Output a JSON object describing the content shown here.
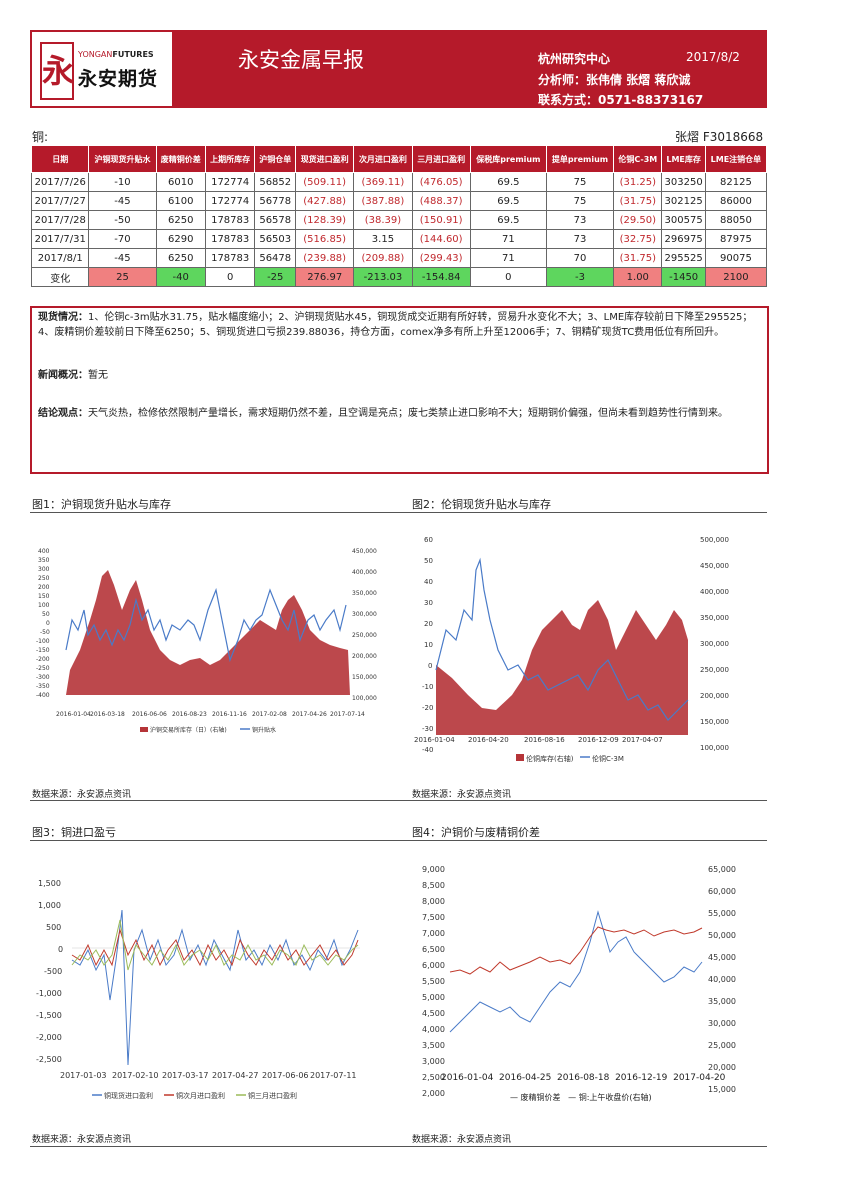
{
  "header": {
    "title": "永安金属早报",
    "center": "杭州研究中心",
    "date": "2017/8/2",
    "analyst": "分析师：张伟倩 张熠 蒋欣诚",
    "contact": "联系方式：0571-88373167",
    "logo_en_a": "YONGAN",
    "logo_en_b": "FUTURES",
    "logo_cn": "永安期货",
    "logo_mark": "永"
  },
  "section": {
    "name": "铜:",
    "author": "张熠 F3018668"
  },
  "table": {
    "headers": [
      "日期",
      "沪铜现货升贴水",
      "废精铜价差",
      "上期所库存",
      "沪铜仓单",
      "现货进口盈利",
      "次月进口盈利",
      "三月进口盈利",
      "保税库premium",
      "提单premium",
      "伦铜C-3M",
      "LME库存",
      "LME注销仓单"
    ],
    "rows": [
      [
        "2017/7/26",
        "-10",
        "6010",
        "172774",
        "56852",
        "(509.11)",
        "(369.11)",
        "(476.05)",
        "69.5",
        "75",
        "(31.25)",
        "303250",
        "82125"
      ],
      [
        "2017/7/27",
        "-45",
        "6100",
        "172774",
        "56778",
        "(427.88)",
        "(387.88)",
        "(488.37)",
        "69.5",
        "75",
        "(31.75)",
        "302125",
        "86000"
      ],
      [
        "2017/7/28",
        "-50",
        "6250",
        "178783",
        "56578",
        "(128.39)",
        "(38.39)",
        "(150.91)",
        "69.5",
        "73",
        "(29.50)",
        "300575",
        "88050"
      ],
      [
        "2017/7/31",
        "-70",
        "6290",
        "178783",
        "56503",
        "(516.85)",
        "3.15",
        "(144.60)",
        "71",
        "73",
        "(32.75)",
        "296975",
        "87975"
      ],
      [
        "2017/8/1",
        "-45",
        "6250",
        "178783",
        "56478",
        "(239.88)",
        "(209.88)",
        "(299.43)",
        "71",
        "70",
        "(31.75)",
        "295525",
        "90075"
      ]
    ],
    "change": [
      "变化",
      "25",
      "-40",
      "0",
      "-25",
      "276.97",
      "-213.03",
      "-154.84",
      "0",
      "-3",
      "1.00",
      "-1450",
      "2100"
    ]
  },
  "commentary": {
    "spot_label": "现货情况：",
    "spot_text": "1、伦铜c-3m贴水31.75，贴水幅度缩小；2、沪铜现货贴水45，铜现货成交近期有所好转，贸易升水变化不大；3、LME库存较前日下降至295525；4、废精铜价差较前日下降至6250；5、铜现货进口亏损239.88036，持仓方面，comex净多有所上升至12006手；7、铜精矿现货TC费用低位有所回升。",
    "news_label": "新闻概况：",
    "news_text": "暂无",
    "view_label": "结论观点：",
    "view_text": "天气炎热，检修依然限制产量增长，需求短期仍然不差，且空调是亮点；废七类禁止进口影响不大；短期铜价偏强，但尚未看到趋势性行情到来。"
  },
  "figures": {
    "fig1_title": "图1：沪铜现货升贴水与库存",
    "fig2_title": "图2：伦铜现货升贴水与库存",
    "fig3_title": "图3：铜进口盈亏",
    "fig4_title": "图4：沪铜价与废精铜价差",
    "source": "数据来源：永安源点资讯"
  },
  "chart_data": [
    {
      "type": "area",
      "x": [
        "2016-01-04",
        "2016-03-18",
        "2016-06-06",
        "2016-08-23",
        "2016-11-16",
        "2017-02-08",
        "2017-04-26",
        "2017-07-14"
      ],
      "series": [
        {
          "name": "沪铜交易所库存（日）(右轴)",
          "values": [
            150000,
            365000,
            345000,
            120000,
            175000,
            290000,
            260000,
            192000
          ]
        },
        {
          "name": "铜升贴水",
          "values": [
            20,
            0,
            60,
            -60,
            -20,
            40,
            -30,
            -45
          ]
        }
      ],
      "ylim_left": [
        -400,
        400
      ],
      "ylim_right": [
        100000,
        450000
      ]
    },
    {
      "type": "area",
      "x": [
        "2016-01-04",
        "2016-04-20",
        "2016-08-16",
        "2016-12-09",
        "2017-04-07"
      ],
      "series": [
        {
          "name": "伦铜库存(右轴)",
          "values": [
            230000,
            145000,
            315000,
            365000,
            350000
          ]
        },
        {
          "name": "伦铜C-3M",
          "values": [
            0,
            40,
            -20,
            -10,
            -30
          ]
        }
      ],
      "ylim_left": [
        -40,
        60
      ],
      "ylim_right": [
        100000,
        500000
      ]
    },
    {
      "type": "line",
      "x": [
        "2017-01-03",
        "2017-02-10",
        "2017-03-17",
        "2017-04-27",
        "2017-06-06",
        "2017-07-11"
      ],
      "series": [
        {
          "name": "铜现货进口盈利",
          "values": [
            -300,
            -1000,
            -200,
            -400,
            -300,
            -240
          ]
        },
        {
          "name": "铜次月进口盈利",
          "values": [
            -400,
            -500,
            -300,
            -200,
            -400,
            -210
          ]
        },
        {
          "name": "铜三月进口盈利",
          "values": [
            -500,
            -300,
            -400,
            -300,
            -500,
            -300
          ]
        }
      ],
      "ylim": [
        -2500,
        1500
      ]
    },
    {
      "type": "line",
      "x": [
        "2016-01-04",
        "2016-04-25",
        "2016-08-18",
        "2016-12-19",
        "2017-04-20"
      ],
      "series": [
        {
          "name": "废精铜价差",
          "values": [
            3000,
            3500,
            3900,
            7000,
            5300
          ]
        },
        {
          "name": "铜:上午收盘价(右轴)",
          "values": [
            36000,
            37500,
            38000,
            45000,
            47000
          ]
        }
      ],
      "ylim_left": [
        2000,
        9000
      ],
      "ylim_right": [
        15000,
        65000
      ]
    }
  ]
}
